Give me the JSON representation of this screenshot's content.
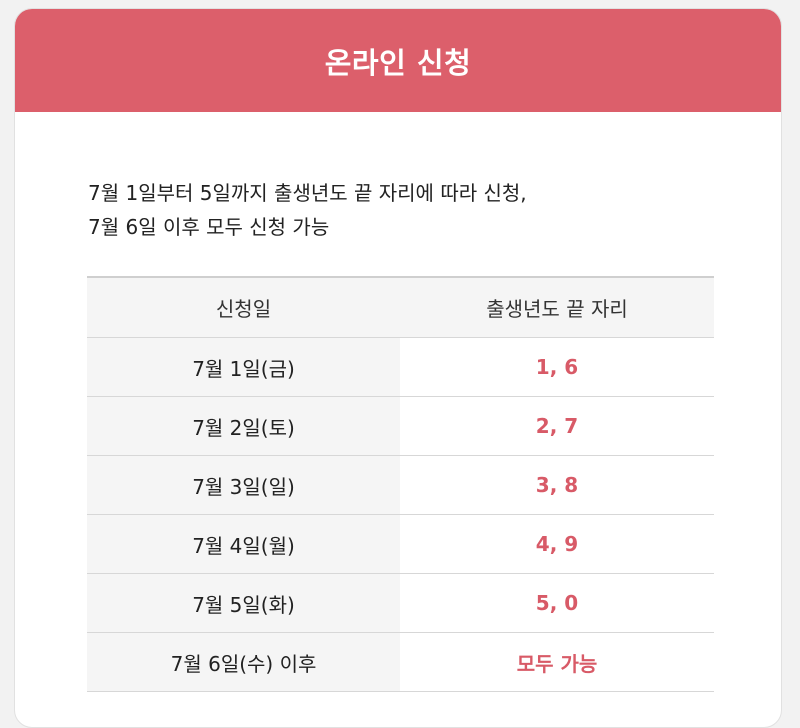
{
  "header": {
    "title": "온라인 신청"
  },
  "intro": {
    "line1": "7월 1일부터 5일까지 출생년도 끝 자리에 따라 신청,",
    "line2": "7월 6일 이후 모두 신청 가능"
  },
  "table": {
    "headers": [
      "신청일",
      "출생년도 끝 자리"
    ],
    "rows": [
      {
        "date": "7월 1일(금)",
        "digits": "1, 6"
      },
      {
        "date": "7월 2일(토)",
        "digits": "2, 7"
      },
      {
        "date": "7월 3일(일)",
        "digits": "3, 8"
      },
      {
        "date": "7월 4일(월)",
        "digits": "4, 9"
      },
      {
        "date": "7월 5일(화)",
        "digits": "5, 0"
      },
      {
        "date": "7월 6일(수) 이후",
        "digits": "모두 가능"
      }
    ]
  },
  "colors": {
    "accent": "#dc5f6b",
    "highlight_text": "#d85a67",
    "cell_gray": "#f5f5f5"
  }
}
